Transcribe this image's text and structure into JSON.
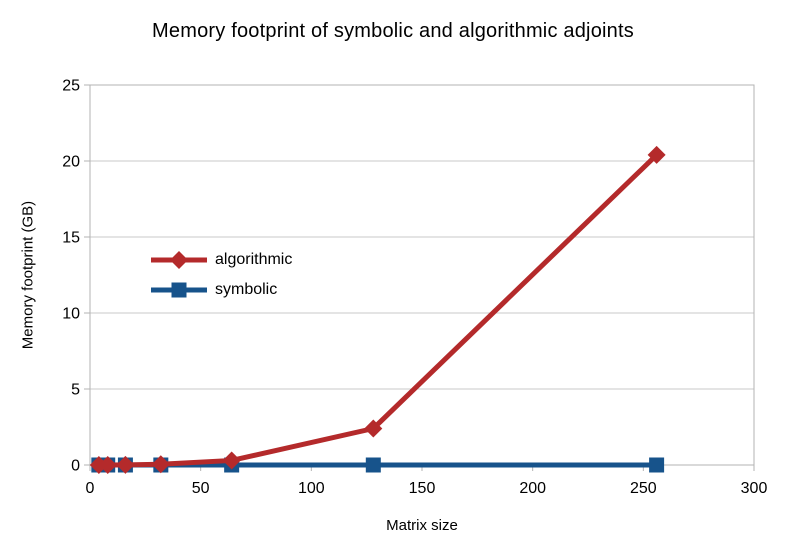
{
  "chart_data": {
    "type": "line",
    "title": "Memory footprint of symbolic and algorithmic adjoints",
    "xlabel": "Matrix size",
    "ylabel": "Memory footprint (GB)",
    "xlim": [
      0,
      300
    ],
    "ylim": [
      0,
      25
    ],
    "x_ticks": [
      0,
      50,
      100,
      150,
      200,
      250,
      300
    ],
    "y_ticks": [
      0,
      5,
      10,
      15,
      20,
      25
    ],
    "grid": "horizontal-only",
    "legend_position": "inside-left",
    "x": [
      4,
      8,
      16,
      32,
      64,
      128,
      256
    ],
    "series": [
      {
        "name": "algorithmic",
        "color": "#b42a2b",
        "marker": "diamond",
        "values": [
          0.0,
          0.0,
          0.01,
          0.05,
          0.3,
          2.4,
          20.4
        ]
      },
      {
        "name": "symbolic",
        "color": "#17538b",
        "marker": "square",
        "values": [
          0.0,
          0.0,
          0.0,
          0.0,
          0.0,
          0.0,
          0.0
        ]
      }
    ],
    "colors": {
      "grid": "#c9c9c9",
      "axis": "#b3b3b3",
      "text": "#000000",
      "background": "#ffffff"
    }
  }
}
